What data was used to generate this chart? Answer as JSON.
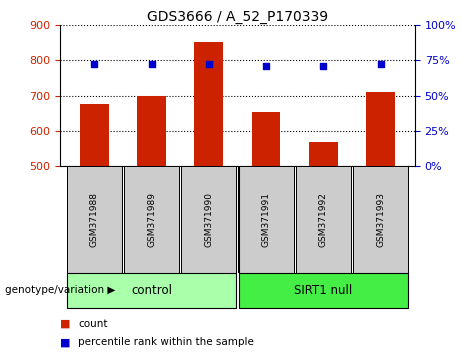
{
  "title": "GDS3666 / A_52_P170339",
  "samples": [
    "GSM371988",
    "GSM371989",
    "GSM371990",
    "GSM371991",
    "GSM371992",
    "GSM371993"
  ],
  "counts": [
    675,
    700,
    850,
    655,
    570,
    710
  ],
  "percentiles": [
    72,
    72,
    72,
    71,
    71,
    72
  ],
  "ylim_left": [
    500,
    900
  ],
  "ylim_right": [
    0,
    100
  ],
  "yticks_left": [
    500,
    600,
    700,
    800,
    900
  ],
  "yticks_right": [
    0,
    25,
    50,
    75,
    100
  ],
  "bar_color": "#cc2200",
  "dot_color": "#0000cc",
  "groups": [
    {
      "label": "control",
      "indices": [
        0,
        1,
        2
      ],
      "color": "#aaffaa"
    },
    {
      "label": "SIRT1 null",
      "indices": [
        3,
        4,
        5
      ],
      "color": "#44ee44"
    }
  ],
  "group_label_text": "genotype/variation",
  "legend_items": [
    {
      "label": "count",
      "color": "#cc2200"
    },
    {
      "label": "percentile rank within the sample",
      "color": "#0000cc"
    }
  ],
  "bar_width": 0.5,
  "fig_width": 4.61,
  "fig_height": 3.54,
  "dpi": 100
}
